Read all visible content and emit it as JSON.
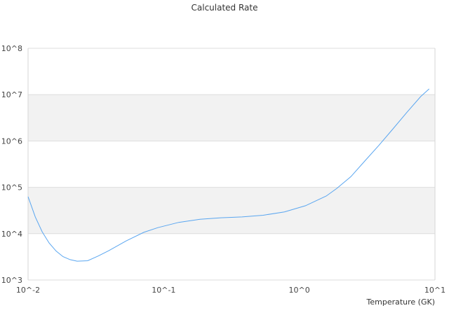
{
  "chart_data": {
    "type": "line",
    "title": "Calculated Rate",
    "xlabel": "Temperature (GK)",
    "ylabel": "",
    "xscale": "log",
    "yscale": "log",
    "xlim": [
      0.01,
      10
    ],
    "ylim": [
      1000,
      100000000
    ],
    "x_tick_labels": [
      "10^-2",
      "10^-1",
      "10^0",
      "10^1"
    ],
    "y_tick_labels": [
      "10^3",
      "10^4",
      "10^5",
      "10^6",
      "10^7",
      "10^8"
    ],
    "grid": true,
    "alternating_bands": true,
    "legend": "none",
    "line_color": "#5aa6f0",
    "band_color": "#f2f2f2",
    "series": [
      {
        "x": [
          0.01,
          0.0113,
          0.0127,
          0.0143,
          0.0161,
          0.0181,
          0.0204,
          0.023,
          0.0275,
          0.0329,
          0.0394,
          0.053,
          0.0714,
          0.0905,
          0.129,
          0.185,
          0.264,
          0.378,
          0.541,
          0.776,
          1.11,
          1.58,
          1.89,
          2.4,
          3.04,
          3.85,
          4.88,
          6.19,
          7.85,
          9.06
        ],
        "y": [
          63000,
          23000,
          11000,
          6300,
          4200,
          3200,
          2750,
          2550,
          2600,
          3300,
          4300,
          7000,
          10700,
          13500,
          17500,
          20500,
          22000,
          23000,
          25000,
          29500,
          40000,
          65000,
          95000,
          170000,
          370000,
          800000,
          1800000,
          4100000,
          9100000,
          13300000
        ]
      }
    ]
  }
}
